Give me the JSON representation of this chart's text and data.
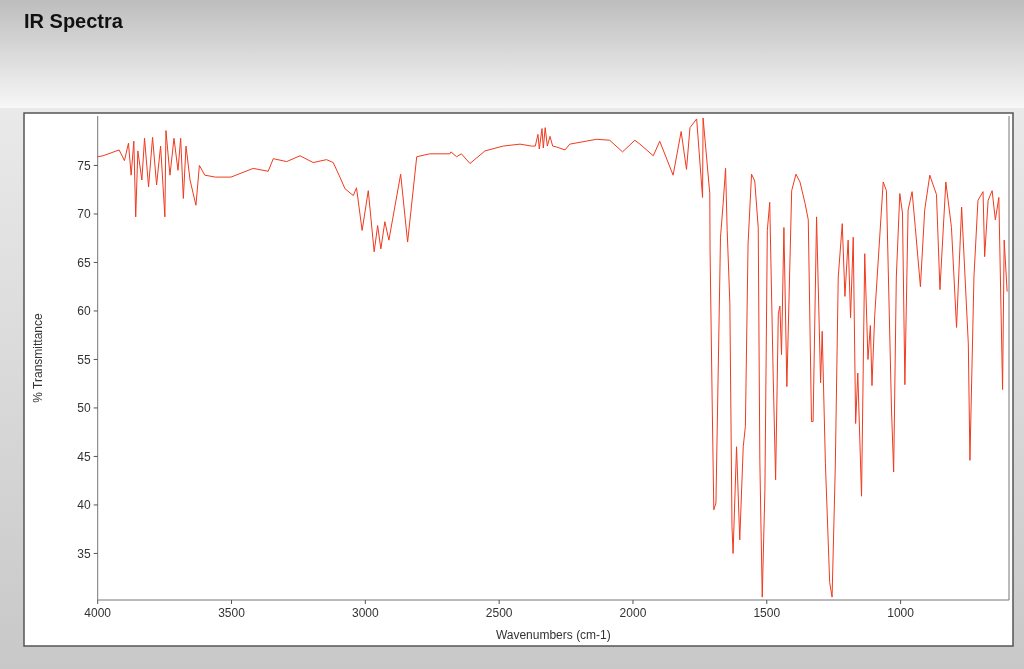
{
  "chart_data": {
    "type": "line",
    "title": "IR Spectra",
    "xlabel": "Wavenumbers (cm-1)",
    "ylabel": "% Transmittance",
    "xlim": [
      4000,
      595
    ],
    "xticks": [
      4000,
      3500,
      3000,
      2500,
      2000,
      1500,
      1000
    ],
    "ylim": [
      30.2,
      80.1
    ],
    "yticks": [
      35,
      40,
      45,
      50,
      55,
      60,
      65,
      70,
      75
    ],
    "grid": false,
    "marker": "none",
    "line_style": "solid",
    "series": [
      {
        "color": "#f03a1e",
        "x": [
          4000,
          3980,
          3950,
          3920,
          3900,
          3885,
          3875,
          3865,
          3858,
          3850,
          3835,
          3825,
          3810,
          3795,
          3780,
          3765,
          3749,
          3745,
          3730,
          3715,
          3700,
          3690,
          3680,
          3670,
          3655,
          3633,
          3620,
          3600,
          3560,
          3502,
          3419,
          3363,
          3344,
          3294,
          3244,
          3195,
          3145,
          3120,
          3095,
          3076,
          3045,
          3033,
          3012,
          2989,
          2967,
          2954,
          2942,
          2927,
          2912,
          2868,
          2842,
          2808,
          2759,
          2684,
          2680,
          2659,
          2641,
          2609,
          2553,
          2485,
          2422,
          2379,
          2365,
          2355,
          2350,
          2340,
          2335,
          2328,
          2320,
          2310,
          2300,
          2285,
          2254,
          2236,
          2136,
          2087,
          2039,
          1993,
          1974,
          1924,
          1900,
          1850,
          1820,
          1800,
          1787,
          1762,
          1740,
          1738,
          1713,
          1712,
          1704,
          1698,
          1690,
          1673,
          1663,
          1654,
          1648,
          1638,
          1630,
          1626,
          1613,
          1601,
          1588,
          1580,
          1570,
          1557,
          1545,
          1532,
          1526,
          1517,
          1507,
          1498,
          1489,
          1476,
          1467,
          1457,
          1451,
          1445,
          1436,
          1425,
          1407,
          1391,
          1376,
          1357,
          1345,
          1333,
          1327,
          1314,
          1299,
          1293,
          1281,
          1265,
          1256,
          1244,
          1233,
          1218,
          1208,
          1196,
          1187,
          1177,
          1168,
          1160,
          1146,
          1134,
          1122,
          1113,
          1107,
          1097,
          1065,
          1053,
          1034,
          1026,
          1016,
          1003,
          993,
          984,
          972,
          957,
          945,
          926,
          910,
          891,
          866,
          853,
          831,
          810,
          791,
          772,
          747,
          741,
          726,
          711,
          692,
          686,
          673,
          658,
          646,
          633,
          619,
          613,
          602
        ],
        "values": [
          75.9,
          76.0,
          76.3,
          76.6,
          75.5,
          77.3,
          74.0,
          77.5,
          69.7,
          76.5,
          73.5,
          77.8,
          72.8,
          77.9,
          73.0,
          77.0,
          69.7,
          78.6,
          74.0,
          77.8,
          74.5,
          77.8,
          71.6,
          77.0,
          73.5,
          70.9,
          75.0,
          74.0,
          73.8,
          73.8,
          74.7,
          74.4,
          75.7,
          75.4,
          76.0,
          75.3,
          75.6,
          75.3,
          73.8,
          72.6,
          71.9,
          72.7,
          68.3,
          72.4,
          66.1,
          68.8,
          66.4,
          69.2,
          67.3,
          74.1,
          67.1,
          75.9,
          76.2,
          76.2,
          76.4,
          75.9,
          76.2,
          75.2,
          76.5,
          77.0,
          77.2,
          77.0,
          77.0,
          78.2,
          76.7,
          78.8,
          76.8,
          78.9,
          77.0,
          78.0,
          77.0,
          76.9,
          76.6,
          77.2,
          77.7,
          77.6,
          76.4,
          77.6,
          77.2,
          76.0,
          77.5,
          74.0,
          78.5,
          74.6,
          78.9,
          79.8,
          71.7,
          79.9,
          72.1,
          66.3,
          50.5,
          39.5,
          40.2,
          67.6,
          71.1,
          74.7,
          68.3,
          60.8,
          37.8,
          35.0,
          46.0,
          36.4,
          46.0,
          48.1,
          66.9,
          74.1,
          73.4,
          68.6,
          44.6,
          30.5,
          41.6,
          68.3,
          71.2,
          53.2,
          42.6,
          59.7,
          60.5,
          55.5,
          68.6,
          52.2,
          72.4,
          74.1,
          73.3,
          71.1,
          69.4,
          48.6,
          48.6,
          69.7,
          52.6,
          57.9,
          44.3,
          32.0,
          30.5,
          44.0,
          63.5,
          69.0,
          61.5,
          67.3,
          59.3,
          67.6,
          48.4,
          53.6,
          40.9,
          65.9,
          55.0,
          58.5,
          52.3,
          59.4,
          73.3,
          72.4,
          49.8,
          43.4,
          63.5,
          72.1,
          70.1,
          52.4,
          70.4,
          72.3,
          68.6,
          62.5,
          70.4,
          74.0,
          72.0,
          62.2,
          73.3,
          68.6,
          58.3,
          70.7,
          56.6,
          44.6,
          63.5,
          71.4,
          72.3,
          65.6,
          71.4,
          72.4,
          69.4,
          71.7,
          51.9,
          67.3,
          62.0
        ]
      }
    ]
  }
}
